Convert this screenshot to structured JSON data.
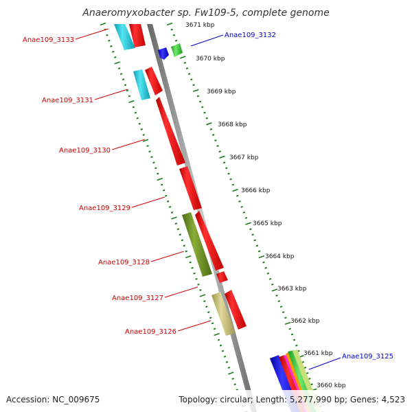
{
  "title": "Anaeromyxobacter sp. Fw109-5, complete genome",
  "footer": {
    "accession": "Accession: NC_009675",
    "stats": "Topology: circular; Length: 5,277,990 bp; Genes: 4,523"
  },
  "scale_labels": [
    "3671 kbp",
    "3670 kbp",
    "3669 kbp",
    "3668 kbp",
    "3667 kbp",
    "3666 kbp",
    "3665 kbp",
    "3664 kbp",
    "3663 kbp",
    "3662 kbp",
    "3661 kbp",
    "3660 kbp"
  ],
  "gene_labels": {
    "left": [
      "Anae109_3133",
      "Anae109_3131",
      "Anae109_3130",
      "Anae109_3129",
      "Anae109_3128",
      "Anae109_3127",
      "Anae109_3126"
    ],
    "right": [
      "Anae109_3132",
      "Anae109_3125"
    ]
  },
  "colors": {
    "backbone": "#8a8a8a",
    "scale_tick": "#1a7a1a",
    "label_left": "#cc0000",
    "label_right": "#0000cc",
    "gene_red": "#ff0000",
    "gene_cyan": "#22ccdd",
    "gene_olive": "#6b8e23",
    "gene_khaki": "#c8c07a",
    "gene_blue": "#0000ee",
    "gene_green": "#33cc33"
  }
}
